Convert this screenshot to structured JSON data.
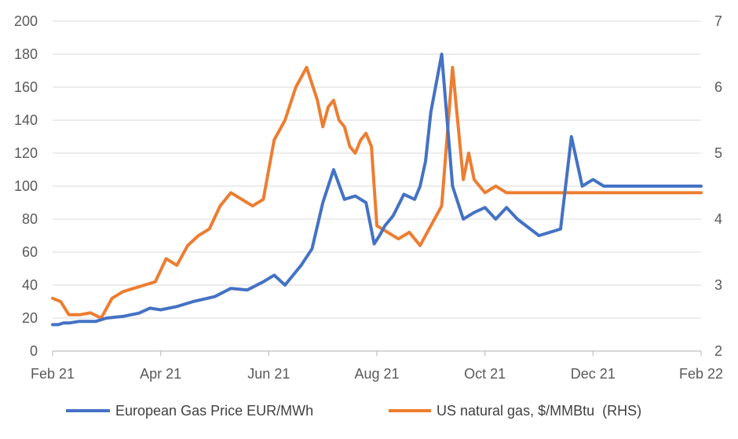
{
  "chart_data": {
    "type": "line",
    "title": "",
    "xlabel": "",
    "ylabel": "",
    "y2label": "",
    "x_tick_labels": [
      "Feb 21",
      "Apr 21",
      "Jun 21",
      "Aug 21",
      "Oct 21",
      "Dec 21",
      "Feb 22"
    ],
    "ylim": [
      0,
      200
    ],
    "y_ticks": [
      0,
      20,
      40,
      60,
      80,
      100,
      120,
      140,
      160,
      180,
      200
    ],
    "y2lim": [
      2,
      7
    ],
    "y2_ticks": [
      2,
      3,
      4,
      5,
      6,
      7
    ],
    "legend_position": "bottom",
    "series": [
      {
        "name": "European Gas Price EUR/MWh",
        "axis": "left",
        "color": "#4472C4",
        "x": [
          0,
          0.1,
          0.2,
          0.3,
          0.5,
          0.8,
          1.0,
          1.3,
          1.6,
          1.8,
          2.0,
          2.3,
          2.6,
          3.0,
          3.3,
          3.6,
          3.9,
          4.1,
          4.3,
          4.6,
          4.8,
          5.0,
          5.2,
          5.4,
          5.6,
          5.8,
          5.95,
          6.05,
          6.15,
          6.3,
          6.5,
          6.7,
          6.8,
          6.9,
          7.0,
          7.2,
          7.4,
          7.6,
          7.8,
          8.0,
          8.2,
          8.4,
          8.6,
          8.8,
          9.0,
          9.2,
          9.4,
          9.6,
          9.8,
          10.0,
          10.2,
          10.4,
          10.6,
          10.7,
          10.8,
          10.9,
          11.0,
          11.1,
          11.2,
          11.3,
          11.4,
          11.5,
          11.6,
          11.7,
          11.8,
          11.85,
          11.9,
          12.0
        ],
        "values": [
          16,
          16,
          17,
          17,
          18,
          18,
          20,
          21,
          23,
          26,
          25,
          27,
          30,
          33,
          38,
          37,
          42,
          46,
          40,
          52,
          62,
          90,
          110,
          92,
          94,
          90,
          65,
          70,
          76,
          82,
          95,
          92,
          100,
          115,
          145,
          180,
          100,
          80,
          84,
          87,
          80,
          87,
          80,
          75,
          70,
          72,
          74,
          130,
          100,
          104,
          100,
          100,
          100,
          100,
          100,
          100,
          100,
          100,
          100,
          100,
          100,
          100,
          100,
          100,
          100,
          100,
          100,
          100
        ]
      },
      {
        "name": "US natural gas, $/MMBtu  (RHS)",
        "axis": "right",
        "color": "#ED7D31",
        "x": [
          0,
          0.15,
          0.3,
          0.5,
          0.7,
          0.9,
          1.1,
          1.3,
          1.5,
          1.7,
          1.9,
          2.1,
          2.3,
          2.5,
          2.7,
          2.9,
          3.1,
          3.3,
          3.5,
          3.7,
          3.9,
          4.1,
          4.3,
          4.5,
          4.7,
          4.9,
          5.0,
          5.1,
          5.2,
          5.3,
          5.4,
          5.5,
          5.6,
          5.7,
          5.8,
          5.9,
          6.0,
          6.2,
          6.4,
          6.6,
          6.8,
          7.0,
          7.2,
          7.4,
          7.6,
          7.7,
          7.8,
          8.0,
          8.2,
          8.4,
          8.6,
          8.8,
          9.0,
          9.2,
          9.4,
          9.6,
          9.8,
          10.0,
          10.2,
          10.4,
          10.6,
          10.8,
          11.0,
          11.2,
          11.4,
          11.6,
          11.8,
          12.0
        ],
        "values": [
          2.8,
          2.75,
          2.55,
          2.55,
          2.58,
          2.5,
          2.8,
          2.9,
          2.95,
          3.0,
          3.05,
          3.4,
          3.3,
          3.6,
          3.75,
          3.85,
          4.2,
          4.4,
          4.3,
          4.2,
          4.3,
          5.2,
          5.5,
          6.0,
          6.3,
          5.8,
          5.4,
          5.7,
          5.8,
          5.5,
          5.4,
          5.1,
          5.0,
          5.2,
          5.3,
          5.1,
          3.9,
          3.8,
          3.7,
          3.8,
          3.6,
          3.9,
          4.2,
          6.3,
          4.6,
          5.0,
          4.6,
          4.4,
          4.5,
          4.4,
          4.4,
          4.4,
          4.4,
          4.4,
          4.4,
          4.4,
          4.4,
          4.4,
          4.4,
          4.4,
          4.4,
          4.4,
          4.4,
          4.4,
          4.4,
          4.4,
          4.4,
          4.4
        ]
      }
    ]
  }
}
